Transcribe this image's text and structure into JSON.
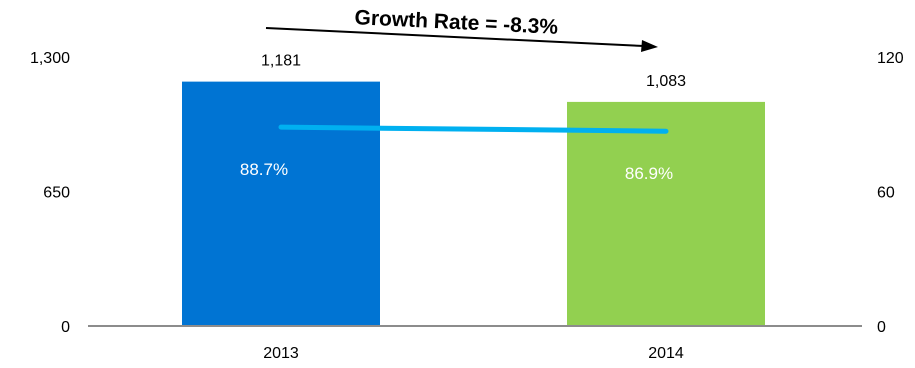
{
  "chart_data": {
    "type": "bar",
    "categories": [
      "2013",
      "2014"
    ],
    "series": [
      {
        "values": [
          1181,
          1083
        ],
        "colors": [
          "#0074D3",
          "#92D050"
        ],
        "value_labels": [
          "1,181",
          "1,083"
        ]
      },
      {
        "type": "line",
        "axis": "right",
        "values": [
          88.7,
          86.9
        ],
        "color": "#00B0F0",
        "value_labels": [
          "88.7%",
          "86.9%"
        ]
      }
    ],
    "left_axis": {
      "ylim": [
        0,
        1300
      ],
      "ticks": [
        0,
        650,
        1300
      ],
      "tick_labels": [
        "0",
        "650",
        "1,300"
      ]
    },
    "right_axis": {
      "ylim": [
        0,
        120
      ],
      "ticks": [
        0,
        60,
        120
      ],
      "tick_labels": [
        "0",
        "60",
        "120"
      ]
    },
    "annotation": {
      "text": "Growth Rate = -8.3%"
    },
    "grid": false,
    "legend": "none"
  }
}
